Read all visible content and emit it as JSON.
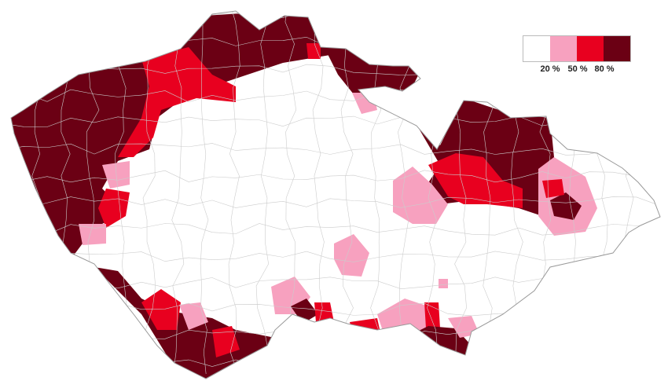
{
  "legend": {
    "colors": [
      "#ffffff",
      "#f7a1bf",
      "#e8001f",
      "#6b0014"
    ],
    "labels": [
      "20 %",
      "50 %",
      "80 %"
    ]
  },
  "map": {
    "border_color": "#999999"
  }
}
